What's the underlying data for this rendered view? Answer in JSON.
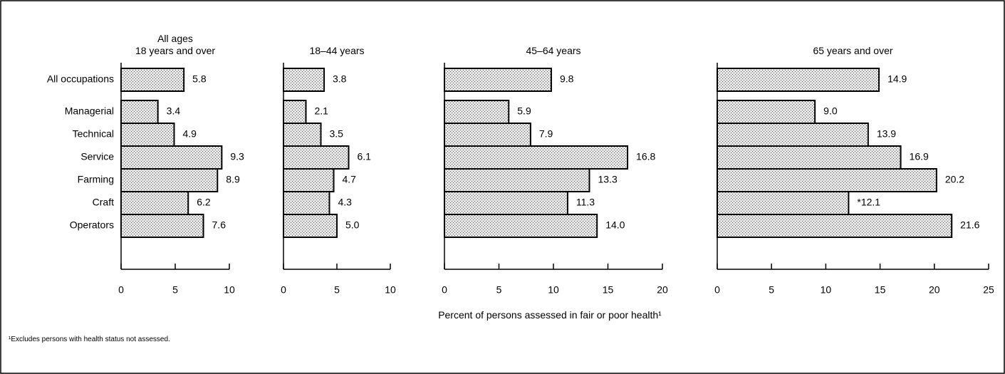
{
  "chart_data": [
    {
      "type": "bar",
      "orientation": "horizontal",
      "title": "All ages\n18 years and over",
      "categories": [
        "All occupations",
        "Managerial",
        "Technical",
        "Service",
        "Farming",
        "Craft",
        "Operators"
      ],
      "values": [
        5.8,
        3.4,
        4.9,
        9.3,
        8.9,
        6.2,
        7.6
      ],
      "value_labels": [
        "5.8",
        "3.4",
        "4.9",
        "9.3",
        "8.9",
        "6.2",
        "7.6"
      ],
      "xlim": [
        0,
        10
      ],
      "xticks": [
        0,
        5,
        10
      ]
    },
    {
      "type": "bar",
      "orientation": "horizontal",
      "title": "18–44 years",
      "values": [
        3.8,
        2.1,
        3.5,
        6.1,
        4.7,
        4.3,
        5.0
      ],
      "value_labels": [
        "3.8",
        "2.1",
        "3.5",
        "6.1",
        "4.7",
        "4.3",
        "5.0"
      ],
      "xlim": [
        0,
        10
      ],
      "xticks": [
        0,
        5,
        10
      ]
    },
    {
      "type": "bar",
      "orientation": "horizontal",
      "title": "45–64 years",
      "values": [
        9.8,
        5.9,
        7.9,
        16.8,
        13.3,
        11.3,
        14.0
      ],
      "value_labels": [
        "9.8",
        "5.9",
        "7.9",
        "16.8",
        "13.3",
        "11.3",
        "14.0"
      ],
      "xlim": [
        0,
        20
      ],
      "xticks": [
        0,
        5,
        10,
        15,
        20
      ]
    },
    {
      "type": "bar",
      "orientation": "horizontal",
      "title": "65 years and over",
      "values": [
        14.9,
        9.0,
        13.9,
        16.9,
        20.2,
        12.1,
        21.6
      ],
      "value_labels": [
        "14.9",
        "9.0",
        "13.9",
        "16.9",
        "20.2",
        "*12.1",
        "21.6"
      ],
      "xlim": [
        0,
        25
      ],
      "xticks": [
        0,
        5,
        10,
        15,
        20,
        25
      ]
    }
  ],
  "x_label": "Percent of persons assessed in fair or poor health¹",
  "footnote": "¹Excludes persons with health status not assessed."
}
